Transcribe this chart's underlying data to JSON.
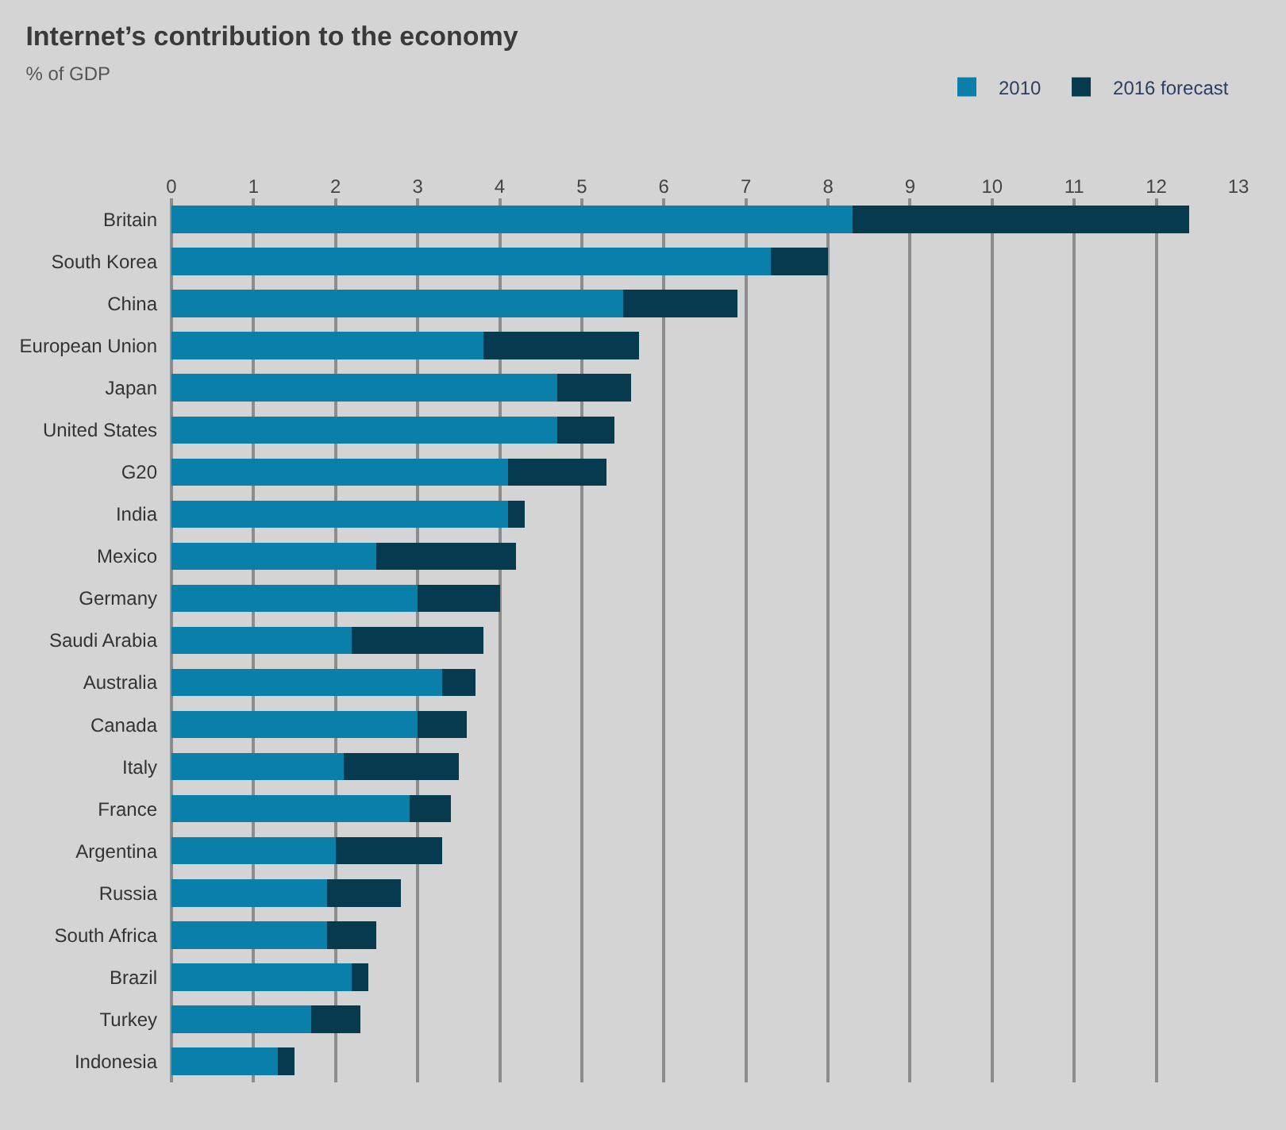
{
  "chart_data": {
    "type": "bar",
    "orientation": "horizontal",
    "stacked": true,
    "title": "Internet’s contribution to the economy",
    "subtitle": "% of GDP",
    "categories": [
      "Britain",
      "South Korea",
      "China",
      "European Union",
      "Japan",
      "United States",
      "G20",
      "India",
      "Mexico",
      "Germany",
      "Saudi Arabia",
      "Australia",
      "Canada",
      "Italy",
      "France",
      "Argentina",
      "Russia",
      "South Africa",
      "Brazil",
      "Turkey",
      "Indonesia"
    ],
    "series": [
      {
        "name": "2010",
        "color": "#0a7faa",
        "values": [
          8.3,
          7.3,
          5.5,
          3.8,
          4.7,
          4.7,
          4.1,
          4.1,
          2.5,
          3.0,
          2.2,
          3.3,
          3.0,
          2.1,
          2.9,
          2.0,
          1.9,
          1.9,
          2.2,
          1.7,
          1.3
        ]
      },
      {
        "name": "2016 forecast",
        "color": "#063a4f",
        "values": [
          4.1,
          0.7,
          1.4,
          1.9,
          0.9,
          0.7,
          1.2,
          0.2,
          1.7,
          1.0,
          1.6,
          0.4,
          0.6,
          1.4,
          0.5,
          1.3,
          0.9,
          0.6,
          0.2,
          0.6,
          0.2
        ]
      }
    ],
    "xlim": [
      0,
      13
    ],
    "xticks": [
      0,
      1,
      2,
      3,
      4,
      5,
      6,
      7,
      8,
      9,
      10,
      11,
      12,
      13
    ],
    "grid": "x",
    "legend": "top right"
  }
}
